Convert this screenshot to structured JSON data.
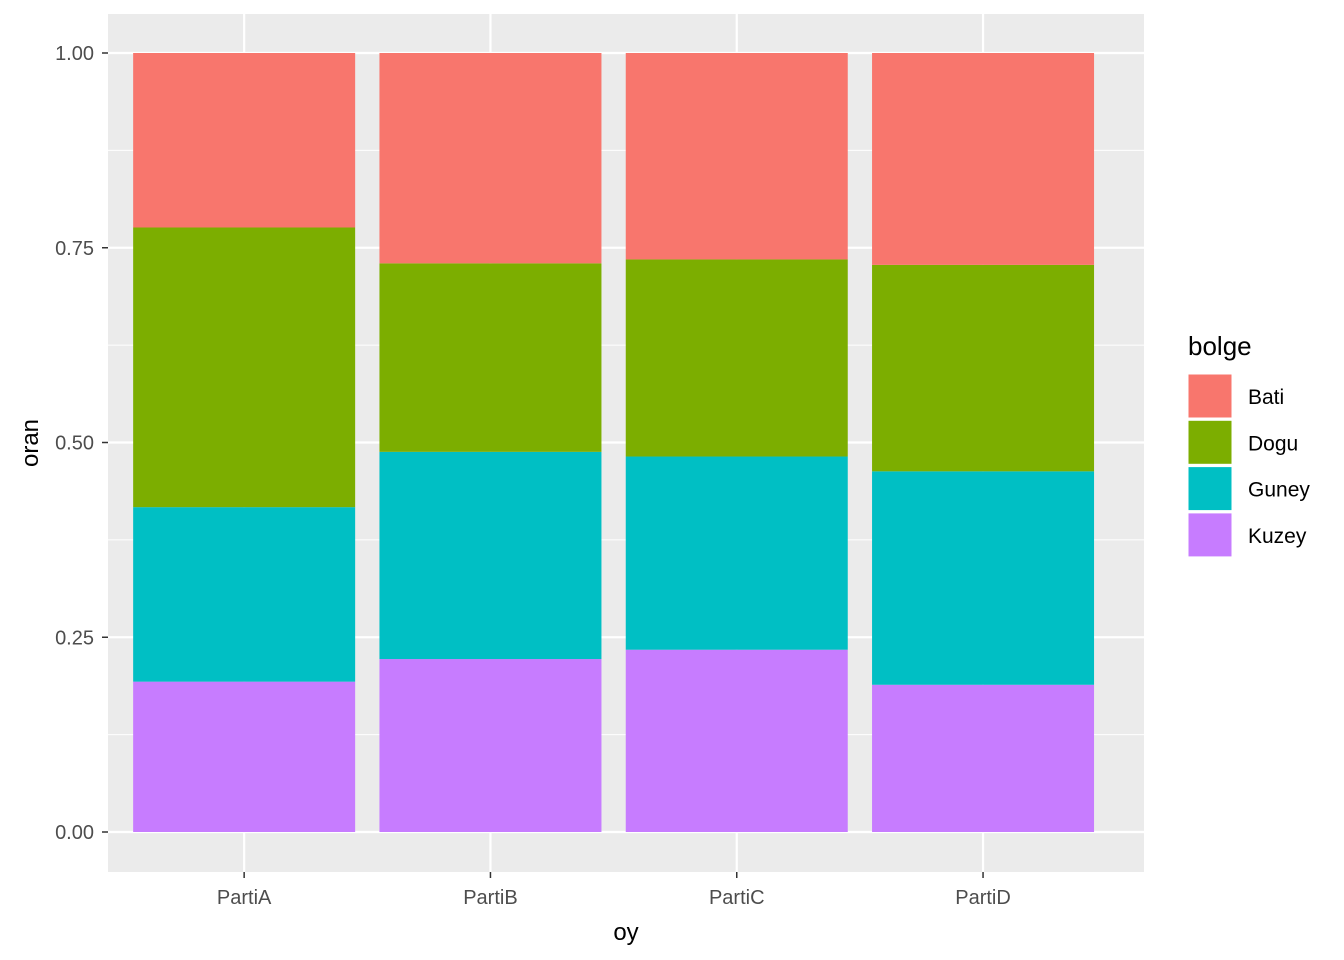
{
  "chart_data": {
    "type": "bar",
    "stacked": true,
    "xlabel": "oy",
    "ylabel": "oran",
    "ylim": [
      0,
      1
    ],
    "yticks": [
      "0.00",
      "0.25",
      "0.50",
      "0.75",
      "1.00"
    ],
    "categories": [
      "PartiA",
      "PartiB",
      "PartiC",
      "PartiD"
    ],
    "legend": {
      "title": "bolge",
      "placement": "right"
    },
    "grid": true,
    "series": [
      {
        "name": "Kuzey",
        "color": "#C77CFF",
        "values": [
          0.193,
          0.222,
          0.234,
          0.189
        ]
      },
      {
        "name": "Guney",
        "color": "#00BFC4",
        "values": [
          0.224,
          0.266,
          0.248,
          0.274
        ]
      },
      {
        "name": "Dogu",
        "color": "#7CAE00",
        "values": [
          0.359,
          0.242,
          0.253,
          0.265
        ]
      },
      {
        "name": "Bati",
        "color": "#F8766D",
        "values": [
          0.224,
          0.27,
          0.265,
          0.272
        ]
      }
    ],
    "legend_order": [
      "Bati",
      "Dogu",
      "Guney",
      "Kuzey"
    ]
  }
}
